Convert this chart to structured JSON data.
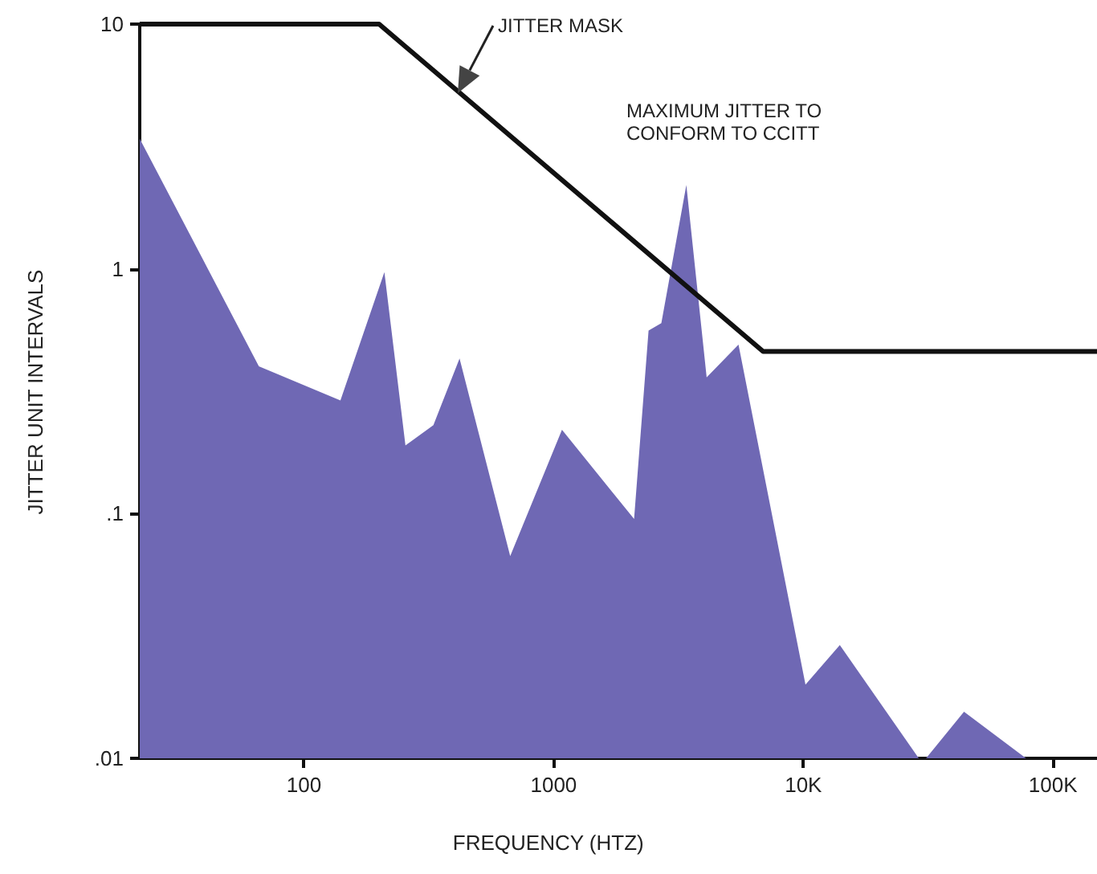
{
  "chart_data": {
    "type": "area",
    "xlabel": "FREQUENCY (HTZ)",
    "ylabel": "JITTER UNIT INTERVALS",
    "log": "xy",
    "grid": false,
    "marker": "none",
    "xlim": [
      22,
      150000
    ],
    "ylim": [
      0.01,
      10
    ],
    "xticks": [
      100,
      1000,
      {
        "value": 10000,
        "label": "10K"
      },
      {
        "value": 100000,
        "label": "100K"
      }
    ],
    "yticks": [
      {
        "value": 0.01,
        "label": ".01"
      },
      {
        "value": 0.1,
        "label": ".1"
      },
      1,
      10
    ],
    "series": [
      {
        "type": "area",
        "color": "#6f68b4",
        "x": [
          22,
          66,
          140,
          210,
          255,
          330,
          420,
          670,
          1080,
          2100,
          2400,
          2700,
          3400,
          4100,
          5500,
          10200,
          14000,
          29000,
          31000,
          44000,
          78000
        ],
        "values": [
          3.4,
          0.4,
          0.29,
          0.97,
          0.19,
          0.23,
          0.43,
          0.067,
          0.22,
          0.095,
          0.56,
          0.6,
          2.2,
          0.36,
          0.49,
          0.02,
          0.029,
          0.01,
          0.01,
          0.0155,
          0.01
        ]
      },
      {
        "type": "line",
        "color": "#111111",
        "line_style": "solid",
        "x": [
          22,
          200,
          6900,
          150000
        ],
        "values": [
          10,
          10,
          0.46,
          0.46
        ]
      }
    ],
    "annotations": [
      "JITTER MASK",
      "MAXIMUM JITTER TO\nCONFORM TO CCITT"
    ]
  }
}
